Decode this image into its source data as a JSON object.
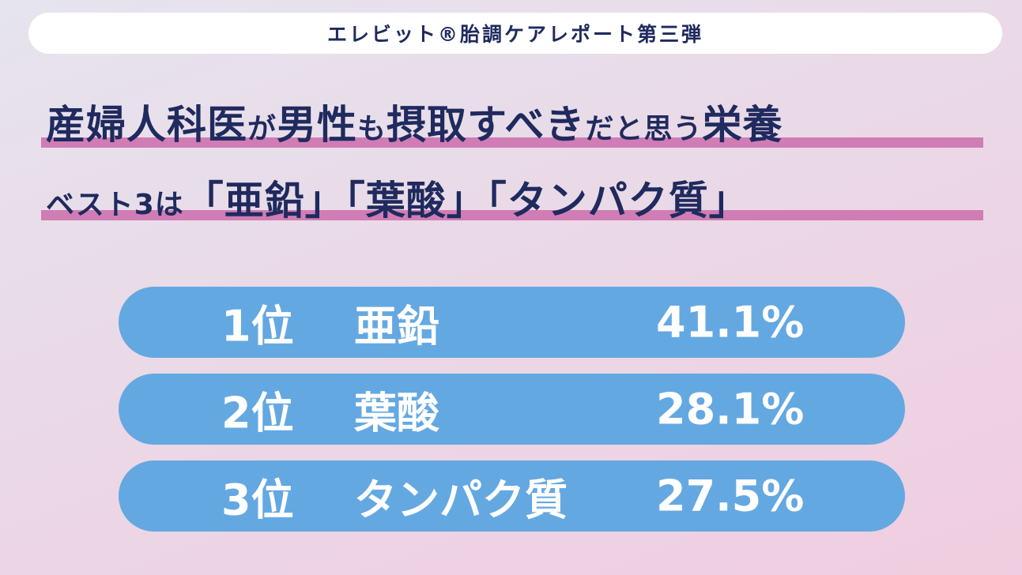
{
  "banner": {
    "text": "エレビット®胎調ケアレポート第三弾"
  },
  "headline": {
    "line1_part1": "産婦人科医",
    "line1_part2": "が",
    "line1_part3": "男性",
    "line1_part4": "も",
    "line1_part5": "摂取すべき",
    "line1_part6": "だと思う",
    "line1_part7": "栄養",
    "line2_part1": "ベスト3は",
    "line2_part2": "「亜鉛」「葉酸」「タンパク質」"
  },
  "ranking": [
    {
      "rank": "1位",
      "item": "亜鉛",
      "percent": "41.1%"
    },
    {
      "rank": "2位",
      "item": "葉酸",
      "percent": "28.1%"
    },
    {
      "rank": "3位",
      "item": "タンパク質",
      "percent": "27.5%"
    }
  ],
  "colors": {
    "navy_text": "#1f2a5e",
    "underline_pink": "#d07cb5",
    "row_blue": "#64a8e2",
    "banner_white": "#ffffff"
  }
}
